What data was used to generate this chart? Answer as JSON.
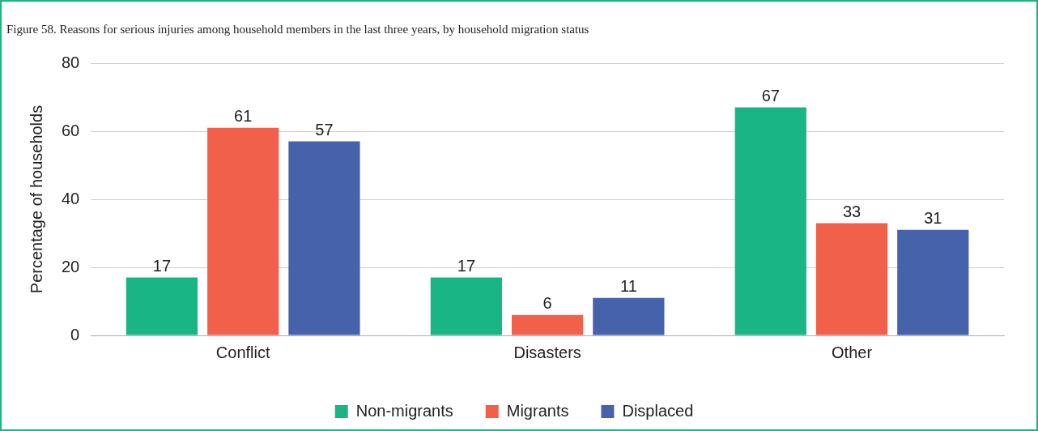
{
  "chart_data": {
    "type": "bar",
    "title": "Figure 58. Reasons for serious injuries among household members in the last three years, by household migration status",
    "ylabel": "Percentage of households",
    "categories": [
      "Conflict",
      "Disasters",
      "Other"
    ],
    "series": [
      {
        "name": "Non-migrants",
        "color": "#1ab584",
        "values": [
          17,
          17,
          67
        ]
      },
      {
        "name": "Migrants",
        "color": "#f0604a",
        "values": [
          61,
          6,
          33
        ]
      },
      {
        "name": "Displaced",
        "color": "#4562ab",
        "values": [
          57,
          11,
          31
        ]
      }
    ],
    "ylim": [
      0,
      80
    ],
    "yticks": [
      0,
      20,
      40,
      60,
      80
    ],
    "grid": "y",
    "legend": "bottom",
    "data_labels": true
  }
}
